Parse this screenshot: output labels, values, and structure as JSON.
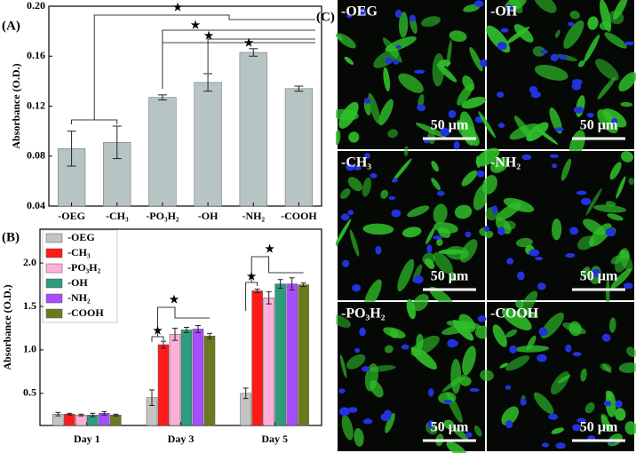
{
  "chart_data": [
    {
      "type": "bar",
      "panel_label": "(A)",
      "ylabel": "Absorbance (O.D.)",
      "categories": [
        "-OEG",
        "-CH₃",
        "-PO₃H₂",
        "-OH",
        "-NH₂",
        "-COOH"
      ],
      "values": [
        0.086,
        0.091,
        0.127,
        0.139,
        0.163,
        0.134
      ],
      "errors": [
        0.014,
        0.013,
        0.002,
        0.007,
        0.003,
        0.002
      ],
      "color": "#b7c4c4",
      "ylim": [
        0.04,
        0.2
      ],
      "yticks": [
        0.04,
        0.08,
        0.12,
        0.16,
        {
          "value": 0.2,
          "label": "0.20"
        }
      ],
      "annotations": [
        "★",
        "★",
        "★",
        "★"
      ]
    },
    {
      "type": "grouped_bar",
      "panel_label": "(B)",
      "ylabel": "Absorbance (O.D.)",
      "categories": [
        "Day 1",
        "Day 3",
        "Day 5"
      ],
      "series": [
        {
          "name": "-OEG",
          "color": "#c4c4c4",
          "values": [
            0.26,
            0.45,
            0.5
          ],
          "errors": [
            0.02,
            0.09,
            0.06
          ]
        },
        {
          "name": "-CH₃",
          "color": "#ff1a1a",
          "values": [
            0.26,
            1.06,
            1.68
          ],
          "errors": [
            0.01,
            0.04,
            0.02
          ]
        },
        {
          "name": "-PO₃H₂",
          "color": "#ffb0d8",
          "values": [
            0.25,
            1.18,
            1.6
          ],
          "errors": [
            0.01,
            0.07,
            0.07
          ]
        },
        {
          "name": "-OH",
          "color": "#2e9a7e",
          "values": [
            0.25,
            1.23,
            1.76
          ],
          "errors": [
            0.02,
            0.03,
            0.05
          ]
        },
        {
          "name": "-NH₂",
          "color": "#a64dff",
          "values": [
            0.27,
            1.24,
            1.76
          ],
          "errors": [
            0.02,
            0.04,
            0.07
          ]
        },
        {
          "name": "-COOH",
          "color": "#6b7a1f",
          "values": [
            0.25,
            1.16,
            1.75
          ],
          "errors": [
            0.01,
            0.03,
            0.02
          ]
        }
      ],
      "ylim": [
        0.13,
        2.39
      ],
      "yticks": [
        0.5,
        {
          "value": 1,
          "label": "1.0"
        },
        1.5,
        {
          "value": 2,
          "label": "2.0"
        }
      ],
      "legend": "upper left",
      "annotations": [
        "★",
        "★",
        "★",
        "★"
      ]
    }
  ],
  "images": {
    "panel_label": "(C)",
    "panels": [
      {
        "label": "-OEG",
        "scale_bar": "50 µm"
      },
      {
        "label": "-OH",
        "scale_bar": "50 µm"
      },
      {
        "label": "-CH₃",
        "scale_bar": "50 µm"
      },
      {
        "label": "-NH₂",
        "scale_bar": "50 µm"
      },
      {
        "label": "-PO₃H₂",
        "scale_bar": "50 µm"
      },
      {
        "label": "-COOH",
        "scale_bar": "50 µm"
      }
    ]
  }
}
